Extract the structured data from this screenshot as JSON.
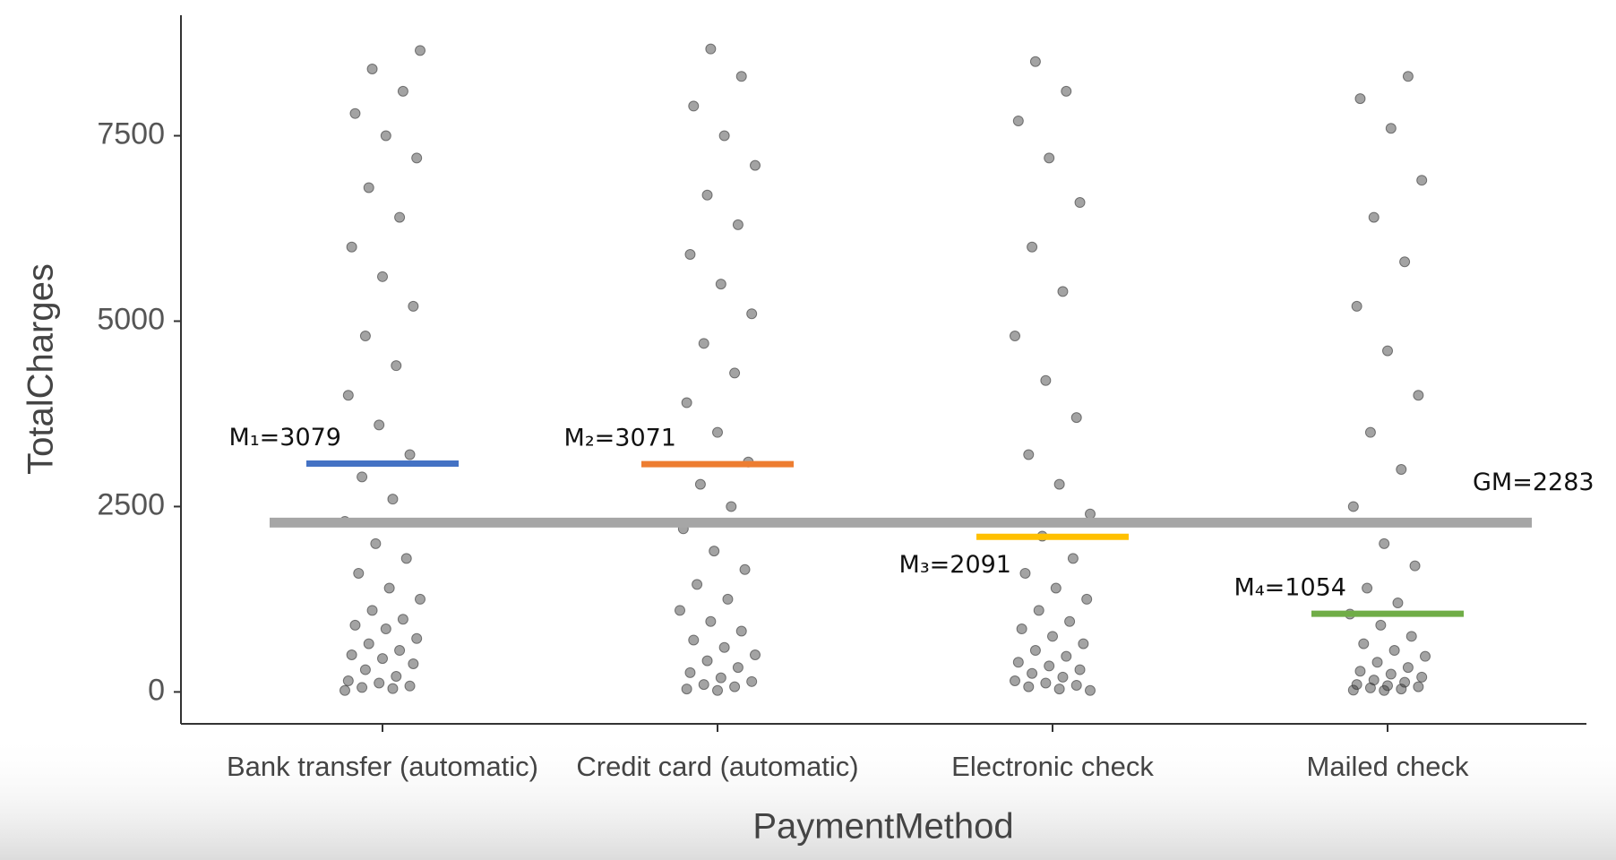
{
  "chart_data": {
    "type": "strip",
    "x_label": "PaymentMethod",
    "y_label": "TotalCharges",
    "categories": [
      "Bank transfer (automatic)",
      "Credit card (automatic)",
      "Electronic check",
      "Mailed check"
    ],
    "points": [
      [
        20,
        45,
        60,
        80,
        120,
        150,
        210,
        300,
        380,
        450,
        500,
        560,
        650,
        720,
        850,
        900,
        980,
        1100,
        1250,
        1400,
        1600,
        1800,
        2000,
        2300,
        2600,
        2900,
        3200,
        3600,
        4000,
        4400,
        4800,
        5200,
        5600,
        6000,
        6400,
        6800,
        7200,
        7500,
        7800,
        8100,
        8400,
        8650
      ],
      [
        20,
        40,
        70,
        100,
        140,
        190,
        260,
        330,
        420,
        500,
        600,
        700,
        820,
        950,
        1100,
        1250,
        1450,
        1650,
        1900,
        2200,
        2500,
        2800,
        3100,
        3500,
        3900,
        4300,
        4700,
        5100,
        5500,
        5900,
        6300,
        6700,
        7100,
        7500,
        7900,
        8300,
        8670
      ],
      [
        20,
        40,
        70,
        90,
        120,
        150,
        200,
        250,
        300,
        350,
        400,
        480,
        560,
        650,
        750,
        850,
        950,
        1100,
        1250,
        1400,
        1600,
        1800,
        2100,
        2400,
        2800,
        3200,
        3700,
        4200,
        4800,
        5400,
        6000,
        6600,
        7200,
        7700,
        8100,
        8500
      ],
      [
        20,
        25,
        40,
        55,
        70,
        85,
        100,
        130,
        160,
        200,
        240,
        280,
        330,
        400,
        480,
        560,
        650,
        750,
        900,
        1050,
        1200,
        1400,
        1700,
        2000,
        2500,
        3000,
        3500,
        4000,
        4600,
        5200,
        5800,
        6400,
        6900,
        7600,
        8000,
        8300
      ]
    ],
    "point_color": "#333333",
    "means": [
      {
        "label": "M₁=3079",
        "value": 3079,
        "color": "#4472c4"
      },
      {
        "label": "M₂=3071",
        "value": 3071,
        "color": "#ed7d31"
      },
      {
        "label": "M₃=2091",
        "value": 2091,
        "color": "#ffc000"
      },
      {
        "label": "M₄=1054",
        "value": 1054,
        "color": "#70ad47"
      }
    ],
    "grand_mean": {
      "label": "GM=2283",
      "value": 2283,
      "color": "#a6a6a6"
    },
    "ylim": [
      -430,
      9125
    ],
    "yticks": [
      0,
      2500,
      5000,
      7500
    ]
  }
}
